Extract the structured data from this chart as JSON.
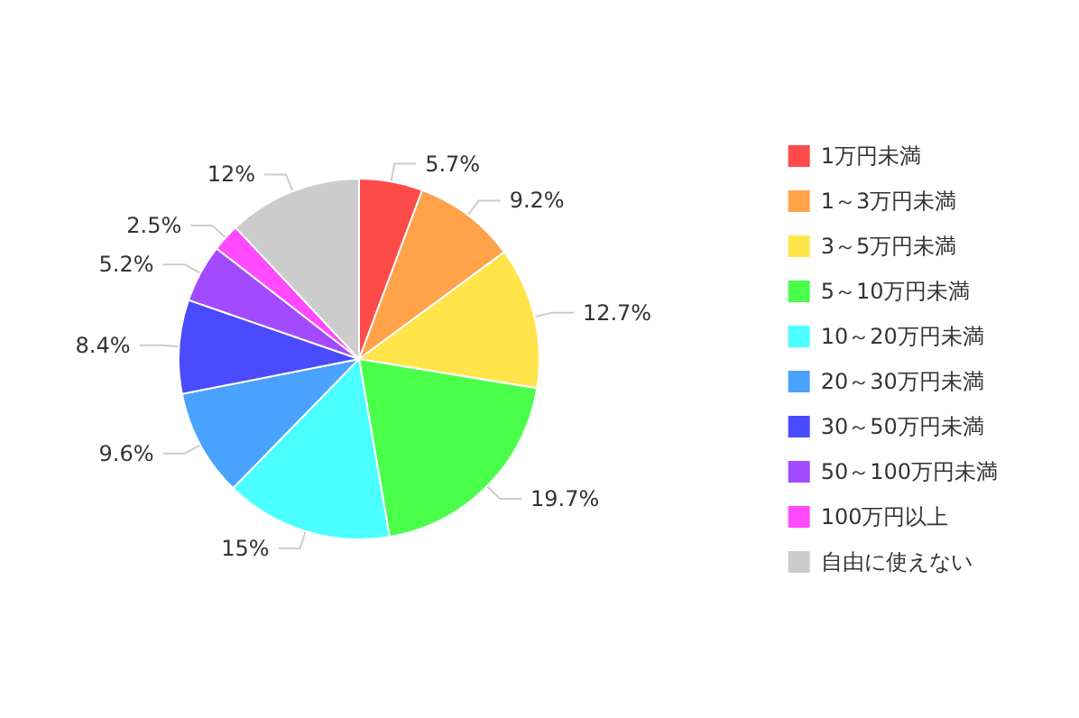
{
  "chart_data": {
    "type": "pie",
    "categories": [
      "1万円未満",
      "1～3万円未満",
      "3～5万円未満",
      "5～10万円未満",
      "10～20万円未満",
      "20～30万円未満",
      "30～50万円未満",
      "50～100万円未満",
      "100万円以上",
      "自由に使えない"
    ],
    "values": [
      5.7,
      9.2,
      12.7,
      19.7,
      15,
      9.6,
      8.4,
      5.2,
      2.5,
      12
    ],
    "value_labels": [
      "5.7%",
      "9.2%",
      "12.7%",
      "19.7%",
      "15%",
      "9.6%",
      "8.4%",
      "5.2%",
      "2.5%",
      "12%"
    ],
    "colors": [
      "#ff4a4a",
      "#ffa24a",
      "#ffe54a",
      "#4aff4a",
      "#4affff",
      "#4aa2ff",
      "#4a4aff",
      "#a24aff",
      "#ff4aff",
      "#cccccc"
    ],
    "legend": "right"
  }
}
